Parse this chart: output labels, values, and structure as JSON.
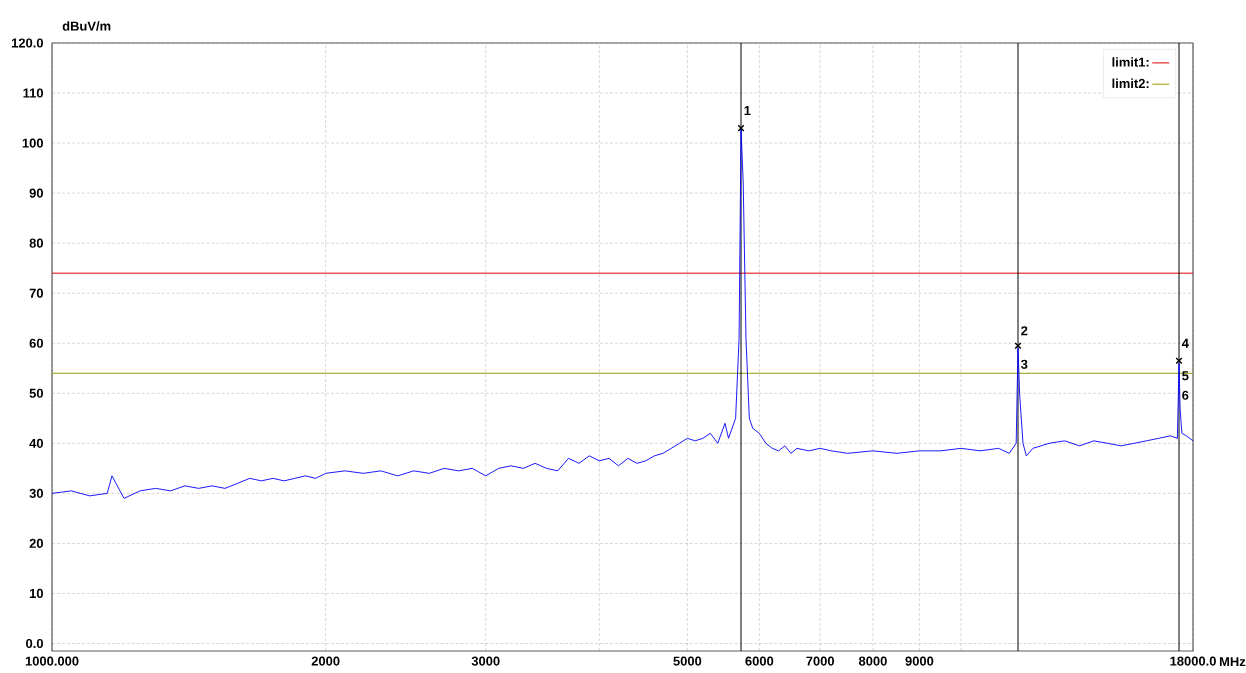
{
  "chart_data": {
    "type": "line",
    "xlabel": "MHz",
    "ylabel": "dBuV/m",
    "log": "x",
    "grid": true,
    "legend": "top right",
    "xlim": [
      1000,
      18000
    ],
    "ylim": [
      -1.5,
      120
    ],
    "xticks": [
      {
        "value": 1000,
        "label": "1000.000"
      },
      2000,
      3000,
      {
        "value": 4000,
        "label": null
      },
      5000,
      6000,
      7000,
      8000,
      9000,
      {
        "value": 10000,
        "label": null
      },
      {
        "value": 18000,
        "label": "18000.0"
      }
    ],
    "yticks": [
      {
        "value": 0,
        "label": "0.0"
      },
      10,
      20,
      30,
      40,
      50,
      60,
      70,
      80,
      90,
      100,
      110,
      {
        "value": 120,
        "label": "120.0"
      }
    ],
    "series": [
      {
        "color": "#0000ff",
        "x": [
          1000,
          1050,
          1100,
          1150,
          1164,
          1200,
          1250,
          1300,
          1350,
          1400,
          1450,
          1500,
          1550,
          1600,
          1650,
          1700,
          1750,
          1800,
          1850,
          1900,
          1950,
          2000,
          2100,
          2200,
          2300,
          2400,
          2500,
          2600,
          2700,
          2800,
          2900,
          3000,
          3100,
          3200,
          3300,
          3400,
          3500,
          3600,
          3700,
          3800,
          3900,
          4000,
          4100,
          4200,
          4300,
          4400,
          4500,
          4600,
          4700,
          4800,
          4900,
          5000,
          5100,
          5200,
          5300,
          5400,
          5500,
          5550,
          5650,
          5700,
          5728,
          5760,
          5800,
          5850,
          5900,
          6000,
          6100,
          6200,
          6300,
          6400,
          6500,
          6600,
          6800,
          7000,
          7200,
          7500,
          8000,
          8500,
          9000,
          9500,
          10000,
          10500,
          11000,
          11300,
          11500,
          11553,
          11600,
          11700,
          11800,
          12000,
          12500,
          13000,
          13500,
          14000,
          14500,
          15000,
          15500,
          16000,
          16500,
          17000,
          17300,
          17374,
          17420,
          17500,
          17700,
          18000
        ],
        "values": [
          30,
          30.5,
          29.5,
          30,
          33.5,
          29,
          30.5,
          31,
          30.5,
          31.5,
          31,
          31.5,
          31,
          32,
          33,
          32.5,
          33,
          32.5,
          33,
          33.5,
          33,
          34,
          34.5,
          34,
          34.5,
          33.5,
          34.5,
          34,
          35,
          34.5,
          35,
          33.5,
          35,
          35.5,
          35,
          36,
          35,
          34.5,
          37,
          36,
          37.5,
          36.5,
          37,
          35.5,
          37,
          36,
          36.5,
          37.5,
          38,
          39,
          40,
          41,
          40.5,
          41,
          42,
          40,
          44,
          41,
          45,
          61,
          103,
          92,
          61,
          45,
          43,
          42,
          40,
          39,
          38.5,
          39.5,
          38,
          39,
          38.5,
          39,
          38.5,
          38,
          38.5,
          38,
          38.5,
          38.5,
          39,
          38.5,
          39,
          38,
          40,
          59,
          50,
          40,
          37.5,
          39,
          40,
          40.5,
          39.5,
          40.5,
          40,
          39.5,
          40,
          40.5,
          41,
          41.5,
          41,
          56,
          47,
          42,
          41.5,
          40.5
        ]
      },
      {
        "type": "scatter",
        "marker": "cross",
        "color": "#000000",
        "x": [
          5728,
          11553,
          17374
        ],
        "values": [
          103,
          59.5,
          56.5
        ]
      }
    ],
    "ref_lines": [
      {
        "axis": "y",
        "value": 74,
        "label": "limit1:",
        "color": "#e00000"
      },
      {
        "axis": "y",
        "value": 54,
        "label": "limit2:",
        "color": "#999900"
      },
      {
        "axis": "x",
        "value": 5728,
        "color": "#000000"
      },
      {
        "axis": "x",
        "value": 11553,
        "color": "#000000"
      },
      {
        "axis": "x",
        "value": 17374,
        "color": "#000000"
      }
    ],
    "annotations": [
      {
        "text": "1",
        "x": 5728,
        "y": 106.5
      },
      {
        "text": "2",
        "x": 11553,
        "y": 62.5
      },
      {
        "text": "3",
        "x": 11553,
        "y": 55.8
      },
      {
        "text": "4",
        "x": 17374,
        "y": 60
      },
      {
        "text": "5",
        "x": 17374,
        "y": 53.5
      },
      {
        "text": "6",
        "x": 17374,
        "y": 49.6
      }
    ]
  }
}
